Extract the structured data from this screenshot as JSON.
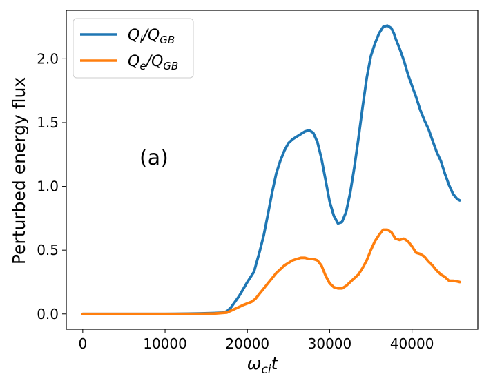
{
  "chart_data": {
    "type": "line",
    "xlabel": "ωcit",
    "ylabel": "Perturbed energy flux",
    "xlim": [
      -2000,
      48000
    ],
    "ylim": [
      -0.12,
      2.38
    ],
    "xticks": [
      0,
      10000,
      20000,
      30000,
      40000
    ],
    "xtick_labels": [
      "0",
      "10000",
      "20000",
      "30000",
      "40000"
    ],
    "yticks": [
      0.0,
      0.5,
      1.0,
      1.5,
      2.0
    ],
    "ytick_labels": [
      "0.0",
      "0.5",
      "1.0",
      "1.5",
      "2.0"
    ],
    "grid": false,
    "legend_position": "upper-left",
    "annotation": "(a)",
    "series": [
      {
        "name": "Qi/QGB",
        "color": "#1f77b4",
        "x": [
          0,
          5000,
          10000,
          14000,
          16000,
          17000,
          17500,
          18000,
          19000,
          20000,
          20800,
          21500,
          22000,
          22500,
          23000,
          23500,
          24000,
          24500,
          25000,
          25500,
          26000,
          26500,
          27000,
          27500,
          28000,
          28500,
          29000,
          29500,
          30000,
          30500,
          31000,
          31500,
          32000,
          32500,
          33000,
          33500,
          34000,
          34500,
          35000,
          35500,
          36000,
          36500,
          37000,
          37500,
          37800,
          38000,
          38500,
          39000,
          39500,
          40000,
          40500,
          41000,
          41500,
          42000,
          42500,
          43000,
          43500,
          44000,
          44500,
          45000,
          45500,
          45800
        ],
        "y": [
          0,
          0,
          0,
          0.003,
          0.007,
          0.01,
          0.02,
          0.05,
          0.14,
          0.25,
          0.33,
          0.49,
          0.62,
          0.78,
          0.95,
          1.1,
          1.2,
          1.28,
          1.34,
          1.37,
          1.39,
          1.41,
          1.43,
          1.44,
          1.42,
          1.35,
          1.22,
          1.05,
          0.88,
          0.77,
          0.71,
          0.72,
          0.8,
          0.95,
          1.15,
          1.38,
          1.62,
          1.85,
          2.02,
          2.12,
          2.2,
          2.25,
          2.26,
          2.24,
          2.2,
          2.16,
          2.08,
          1.99,
          1.88,
          1.79,
          1.7,
          1.6,
          1.52,
          1.45,
          1.36,
          1.27,
          1.2,
          1.1,
          1.01,
          0.94,
          0.9,
          0.89
        ]
      },
      {
        "name": "Qe/QGB",
        "color": "#ff7f0e",
        "x": [
          0,
          5000,
          10000,
          14000,
          16000,
          17500,
          18500,
          19500,
          20500,
          21000,
          21500,
          22000,
          22500,
          23000,
          23500,
          24000,
          24500,
          25000,
          25500,
          26000,
          26500,
          27000,
          27500,
          28000,
          28500,
          29000,
          29500,
          30000,
          30500,
          31000,
          31500,
          32000,
          32500,
          33000,
          33500,
          34000,
          34500,
          35000,
          35500,
          36000,
          36500,
          37000,
          37500,
          38000,
          38500,
          39000,
          39500,
          40000,
          40500,
          41000,
          41500,
          42000,
          42500,
          43000,
          43500,
          44000,
          44500,
          45000,
          45500,
          45800
        ],
        "y": [
          0,
          0,
          0,
          0.001,
          0.003,
          0.01,
          0.04,
          0.07,
          0.095,
          0.12,
          0.16,
          0.2,
          0.24,
          0.28,
          0.32,
          0.35,
          0.38,
          0.4,
          0.42,
          0.43,
          0.44,
          0.44,
          0.43,
          0.43,
          0.42,
          0.38,
          0.3,
          0.24,
          0.21,
          0.2,
          0.2,
          0.22,
          0.25,
          0.28,
          0.31,
          0.36,
          0.42,
          0.5,
          0.57,
          0.62,
          0.66,
          0.66,
          0.64,
          0.59,
          0.58,
          0.59,
          0.57,
          0.53,
          0.48,
          0.47,
          0.45,
          0.41,
          0.38,
          0.34,
          0.31,
          0.29,
          0.26,
          0.26,
          0.255,
          0.25
        ]
      }
    ]
  }
}
